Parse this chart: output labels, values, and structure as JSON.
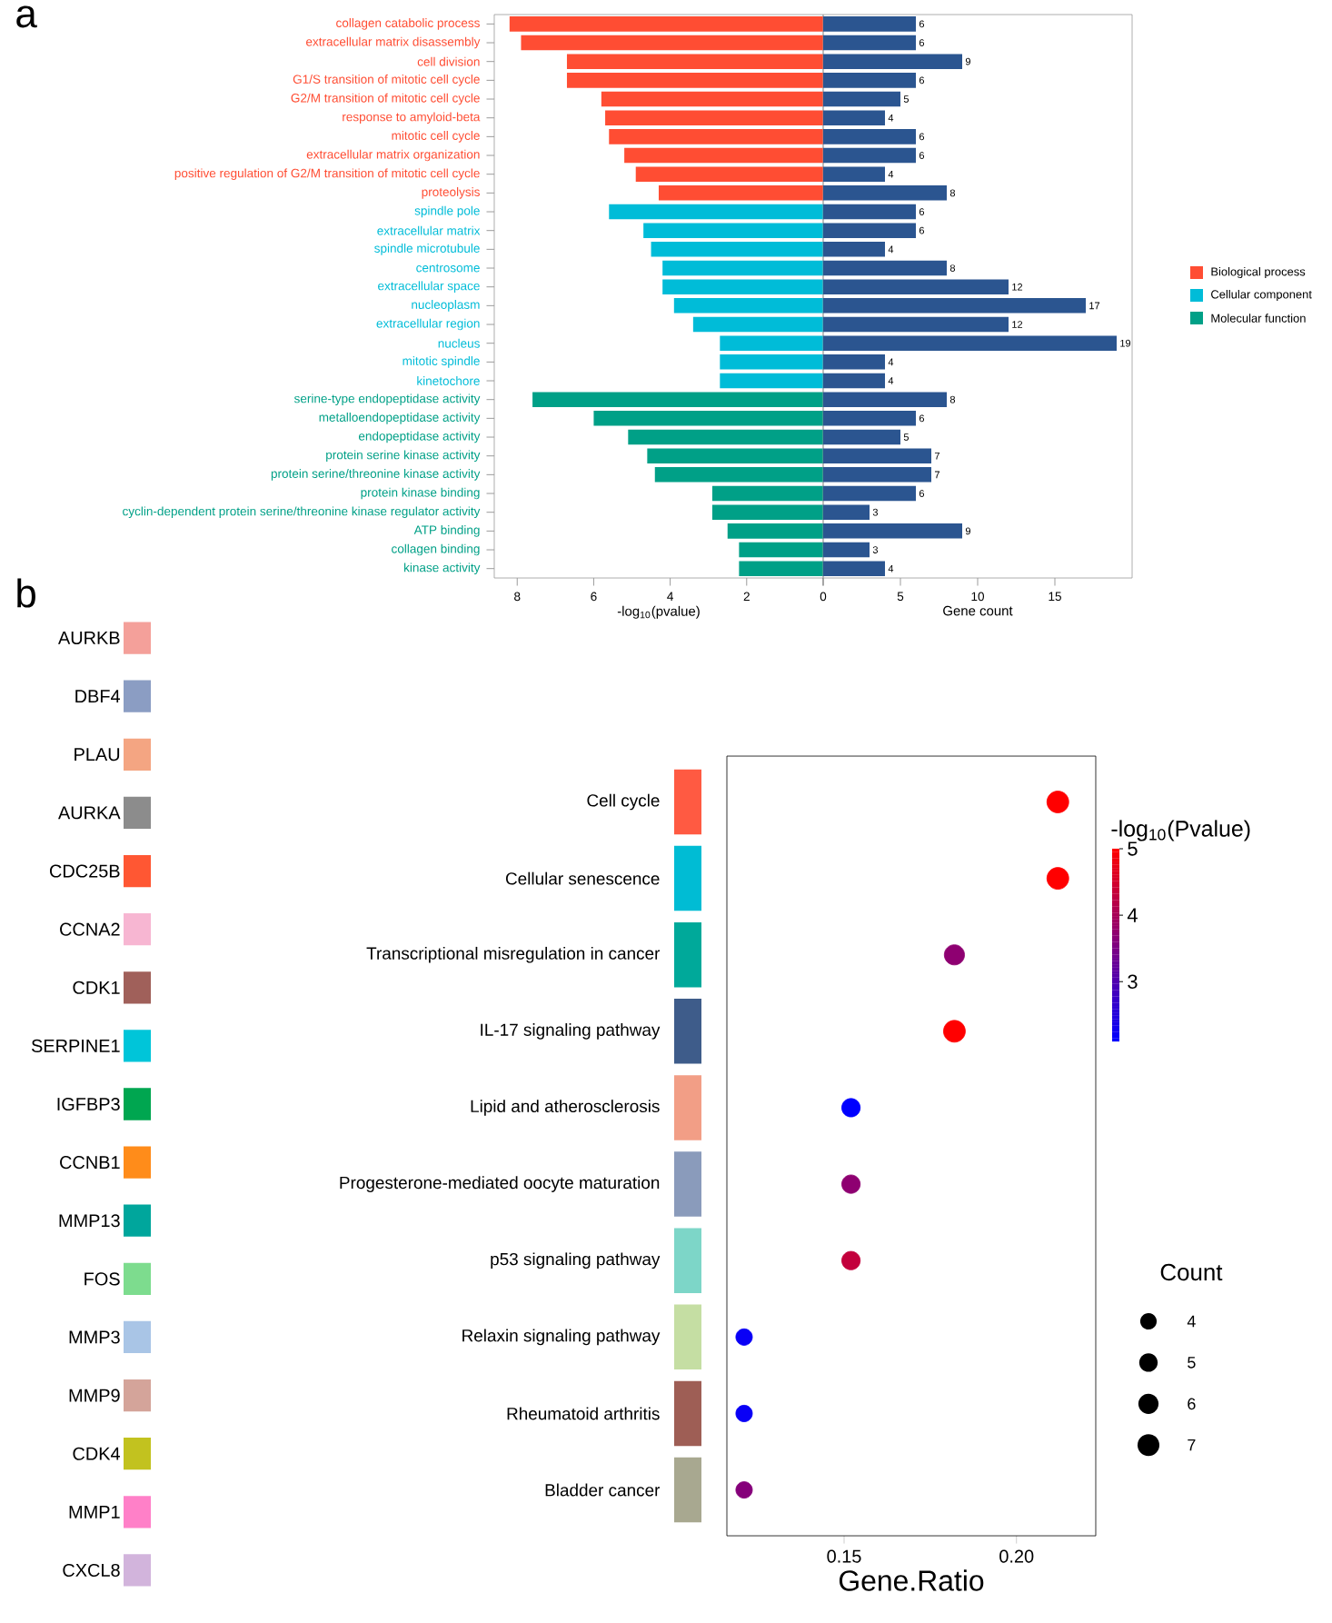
{
  "chart_data": [
    {
      "type": "bar",
      "orientation": "horizontal",
      "annotations": [
        "a"
      ],
      "xlabel": "-log$_{10}$(pvalue)",
      "xlim": [
        8.6,
        0
      ],
      "xticks": [
        8,
        6,
        4,
        2,
        0
      ],
      "legend": "right",
      "categories": [
        "collagen catabolic process",
        "extracellular matrix disassembly",
        "cell division",
        "G1/S transition of mitotic cell cycle",
        "G2/M transition of mitotic cell cycle",
        "response to amyloid-beta",
        "mitotic cell cycle",
        "extracellular matrix organization",
        "positive regulation of G2/M transition of mitotic cell cycle",
        "proteolysis",
        "spindle pole",
        "extracellular matrix",
        "spindle microtubule",
        "centrosome",
        "extracellular space",
        "nucleoplasm",
        "extracellular region",
        "nucleus",
        "mitotic spindle",
        "kinetochore",
        "serine-type endopeptidase activity",
        "metalloendopeptidase activity",
        "endopeptidase activity",
        "protein serine kinase activity",
        "protein serine/threonine kinase activity",
        "protein kinase binding",
        "cyclin-dependent protein serine/threonine kinase regulator activity",
        "ATP binding",
        "collagen binding",
        "kinase activity"
      ],
      "series": [
        {
          "name": "Biological process",
          "color": "#ff4d33",
          "values": [
            8.2,
            7.9,
            6.7,
            6.7,
            5.8,
            5.7,
            5.6,
            5.2,
            4.9,
            4.3,
            null,
            null,
            null,
            null,
            null,
            null,
            null,
            null,
            null,
            null,
            null,
            null,
            null,
            null,
            null,
            null,
            null,
            null,
            null,
            null
          ]
        },
        {
          "name": "Cellular component",
          "color": "#00bcd8",
          "values": [
            null,
            null,
            null,
            null,
            null,
            null,
            null,
            null,
            null,
            null,
            5.6,
            4.7,
            4.5,
            4.2,
            4.2,
            3.9,
            3.4,
            2.7,
            2.7,
            2.7,
            null,
            null,
            null,
            null,
            null,
            null,
            null,
            null,
            null,
            null
          ]
        },
        {
          "name": "Molecular function",
          "color": "#00a087",
          "values": [
            null,
            null,
            null,
            null,
            null,
            null,
            null,
            null,
            null,
            null,
            null,
            null,
            null,
            null,
            null,
            null,
            null,
            null,
            null,
            null,
            7.6,
            6.0,
            5.1,
            4.6,
            4.4,
            2.9,
            2.9,
            2.5,
            2.2,
            2.2
          ]
        }
      ]
    },
    {
      "type": "bar",
      "orientation": "horizontal",
      "xlabel": "Gene count",
      "xlim": [
        0,
        20
      ],
      "xticks": [
        {
          "value": 0,
          "label": null
        },
        5,
        10,
        15
      ],
      "tick_labels": "x",
      "data_labels": true,
      "color": "#2b5590",
      "categories": [
        null,
        null,
        null,
        null,
        null,
        null,
        null,
        null,
        null,
        null,
        null,
        null,
        null,
        null,
        null,
        null,
        null,
        null,
        null,
        null,
        null,
        null,
        null,
        null,
        null,
        null,
        null,
        null,
        null,
        null
      ],
      "values": [
        6,
        6,
        9,
        6,
        5,
        4,
        6,
        6,
        4,
        8,
        6,
        6,
        4,
        8,
        12,
        17,
        12,
        19,
        4,
        4,
        8,
        6,
        5,
        7,
        7,
        6,
        3,
        9,
        3,
        4
      ]
    },
    {
      "type": "other",
      "annotations": [
        "b"
      ],
      "categories": [
        "AURKB",
        "DBF4",
        "PLAU",
        "AURKA",
        "CDC25B",
        "CCNA2",
        "CDK1",
        "SERPINE1",
        "IGFBP3",
        "CCNB1",
        "MMP13",
        "FOS",
        "MMP3",
        "MMP9",
        "CDK4",
        "MMP1",
        "CXCL8"
      ],
      "y_categories": [
        null,
        null,
        null,
        null,
        null,
        null,
        null,
        null,
        null,
        null
      ],
      "colors": [
        "#f4a09a",
        "#8b9dc3",
        "#f4a582",
        "#8c8c8c",
        "#ff5733",
        "#f7b6d2",
        "#a0605a",
        "#00c5d9",
        "#00a650",
        "#ff8c1a",
        "#00a69c",
        "#7ddc8e",
        "#a9c5e6",
        "#d4a49a",
        "#c2c21f",
        "#ff80c8",
        "#d2b4dc",
        "#ff5a42",
        "#00bcd4",
        "#00a99a",
        "#3e5c8a",
        "#f29e86",
        "#8a9bbb",
        "#7dd6c8",
        "#c5dea3",
        "#9e5e55",
        "#a8a890"
      ]
    },
    {
      "type": "bubble",
      "orientation": "horizontal",
      "xlabel": "Gene.Ratio",
      "xlim": [
        0.116,
        0.223
      ],
      "xticks": [
        0.15,
        {
          "value": 0.2,
          "label": "0.20"
        }
      ],
      "categories": [
        "Cell cycle",
        "Cellular senescence",
        "Transcriptional misregulation in cancer",
        "IL-17 signaling pathway",
        "Lipid and atherosclerosis",
        "Progesterone-mediated oocyte maturation",
        "p53 signaling pathway",
        "Relaxin signaling pathway",
        "Rheumatoid arthritis",
        "Bladder cancer"
      ],
      "values": [
        0.212,
        0.212,
        0.182,
        0.182,
        0.152,
        0.152,
        0.152,
        0.121,
        0.121,
        0.121
      ],
      "sizes": [
        7,
        7,
        6,
        7,
        5,
        5,
        5,
        4,
        4,
        4
      ],
      "cvalues": [
        5.0,
        5.0,
        3.7,
        5.0,
        2.1,
        3.7,
        4.3,
        2.2,
        2.2,
        3.6
      ],
      "clim": [
        2.1,
        5.0
      ],
      "cticks": [
        3,
        4,
        5
      ],
      "clabel": "-log$_{10}$(Pvalue)",
      "legend_title": "Count",
      "size_legend": [
        4,
        5,
        6,
        7
      ]
    }
  ]
}
